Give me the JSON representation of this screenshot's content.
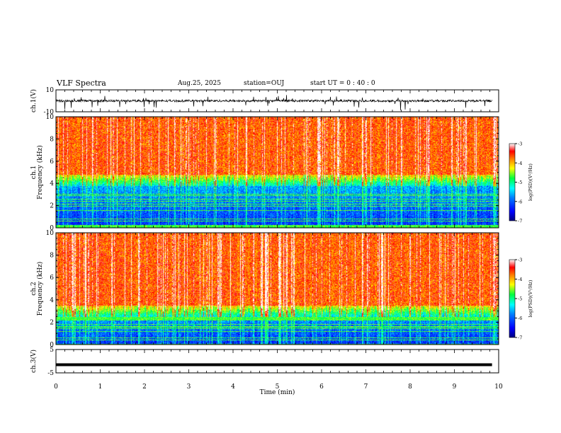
{
  "header": {
    "title": "VLF Spectra",
    "date": "Aug.25, 2025",
    "station": "station=OUJ",
    "start": "start  UT =   0 : 40 : 0"
  },
  "colors": {
    "rainbow": [
      "#00007f",
      "#0000ff",
      "#0080ff",
      "#00e0ff",
      "#00ff80",
      "#80ff00",
      "#ffff00",
      "#ff8000",
      "#ff0000",
      "#ffffff"
    ]
  },
  "chart_data": [
    {
      "type": "line",
      "panel": "ch1-waveform",
      "ylabel": "ch.1(V)",
      "ylim": [
        -10,
        10
      ],
      "yticks": [
        "10",
        "-10"
      ],
      "x": [
        0,
        10
      ],
      "description_values": {
        "baseline_v": 0,
        "amplitude_v": 2
      }
    },
    {
      "type": "heatmap",
      "panel": "ch1-spectrogram",
      "ylabel": "ch.1\nFrequency  (kHz)",
      "ylim": [
        0,
        10
      ],
      "yticks": [
        "0",
        "2",
        "4",
        "6",
        "8",
        "10"
      ],
      "xlim": [
        0,
        10
      ],
      "cutoff_khz": 4.8,
      "colorbar": {
        "label": "log(PSD)(V²/Hz)",
        "ticks": [
          "-3",
          "-4",
          "-5",
          "-6",
          "-7"
        ],
        "range": [
          -7,
          -3
        ]
      }
    },
    {
      "type": "heatmap",
      "panel": "ch2-spectrogram",
      "ylabel": "ch.2\nFrequency  (kHz)",
      "ylim": [
        0,
        10
      ],
      "yticks": [
        "0",
        "2",
        "4",
        "6",
        "8",
        "10"
      ],
      "xlim": [
        0,
        10
      ],
      "cutoff_khz": 3.5,
      "colorbar": {
        "label": "log(PSD)(V²/Hz)",
        "ticks": [
          "-3",
          "-4",
          "-5",
          "-6",
          "-7"
        ],
        "range": [
          -7,
          -3
        ]
      }
    },
    {
      "type": "line",
      "panel": "ch3-waveform",
      "ylabel": "ch.3(V)",
      "ylim": [
        -5,
        5
      ],
      "yticks": [
        "5",
        "-5"
      ],
      "x": [
        0,
        9.85
      ],
      "y": [
        -1.5,
        -1.5
      ]
    }
  ],
  "xaxis": {
    "label": "Time  (min)",
    "ticks": [
      "0",
      "1",
      "2",
      "3",
      "4",
      "5",
      "6",
      "7",
      "8",
      "9",
      "10"
    ]
  }
}
